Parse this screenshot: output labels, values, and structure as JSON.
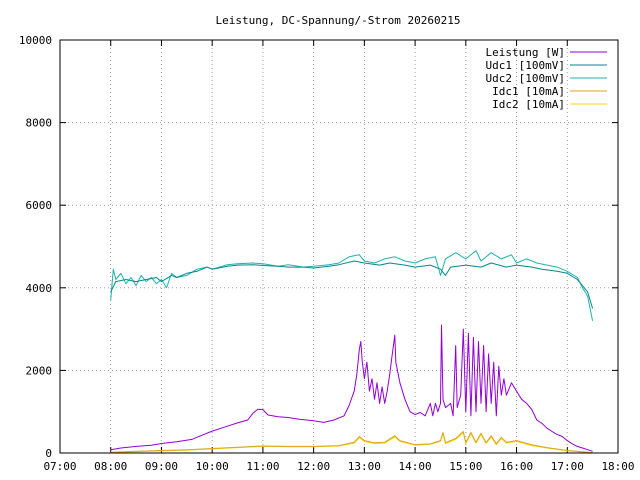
{
  "chart_data": {
    "type": "line",
    "title": "Leistung, DC-Spannung/-Strom 20260215",
    "xlabel": "",
    "ylabel": "",
    "grid": true,
    "legend_position": "top-right",
    "xlim": [
      7.0,
      18.0
    ],
    "ylim": [
      0,
      10000
    ],
    "x_ticks": [
      {
        "value": 7,
        "label": "07:00"
      },
      {
        "value": 8,
        "label": "08:00"
      },
      {
        "value": 9,
        "label": "09:00"
      },
      {
        "value": 10,
        "label": "10:00"
      },
      {
        "value": 11,
        "label": "11:00"
      },
      {
        "value": 12,
        "label": "12:00"
      },
      {
        "value": 13,
        "label": "13:00"
      },
      {
        "value": 14,
        "label": "14:00"
      },
      {
        "value": 15,
        "label": "15:00"
      },
      {
        "value": 16,
        "label": "16:00"
      },
      {
        "value": 17,
        "label": "17:00"
      },
      {
        "value": 18,
        "label": "18:00"
      }
    ],
    "y_ticks": [
      {
        "value": 0,
        "label": "0"
      },
      {
        "value": 2000,
        "label": "2000"
      },
      {
        "value": 4000,
        "label": "4000"
      },
      {
        "value": 6000,
        "label": "6000"
      },
      {
        "value": 8000,
        "label": "8000"
      },
      {
        "value": 10000,
        "label": "10000"
      }
    ],
    "series": [
      {
        "name": "Leistung [W]",
        "color": "#9400d3",
        "points": [
          [
            8.0,
            80
          ],
          [
            8.2,
            120
          ],
          [
            8.5,
            160
          ],
          [
            8.8,
            190
          ],
          [
            9.0,
            230
          ],
          [
            9.3,
            270
          ],
          [
            9.6,
            330
          ],
          [
            9.8,
            430
          ],
          [
            10.0,
            530
          ],
          [
            10.3,
            650
          ],
          [
            10.5,
            730
          ],
          [
            10.7,
            800
          ],
          [
            10.8,
            960
          ],
          [
            10.9,
            1060
          ],
          [
            11.0,
            1050
          ],
          [
            11.1,
            920
          ],
          [
            11.3,
            880
          ],
          [
            11.5,
            860
          ],
          [
            11.7,
            820
          ],
          [
            12.0,
            780
          ],
          [
            12.2,
            740
          ],
          [
            12.4,
            800
          ],
          [
            12.6,
            900
          ],
          [
            12.7,
            1150
          ],
          [
            12.8,
            1500
          ],
          [
            12.85,
            1900
          ],
          [
            12.9,
            2500
          ],
          [
            12.93,
            2700
          ],
          [
            12.96,
            2200
          ],
          [
            13.0,
            1800
          ],
          [
            13.05,
            2200
          ],
          [
            13.1,
            1500
          ],
          [
            13.15,
            1800
          ],
          [
            13.2,
            1300
          ],
          [
            13.25,
            1700
          ],
          [
            13.3,
            1200
          ],
          [
            13.35,
            1600
          ],
          [
            13.4,
            1200
          ],
          [
            13.45,
            1500
          ],
          [
            13.5,
            1900
          ],
          [
            13.55,
            2400
          ],
          [
            13.6,
            2850
          ],
          [
            13.62,
            2200
          ],
          [
            13.7,
            1700
          ],
          [
            13.8,
            1300
          ],
          [
            13.9,
            1000
          ],
          [
            14.0,
            930
          ],
          [
            14.1,
            980
          ],
          [
            14.2,
            900
          ],
          [
            14.3,
            1200
          ],
          [
            14.35,
            900
          ],
          [
            14.4,
            1200
          ],
          [
            14.45,
            1000
          ],
          [
            14.5,
            1200
          ],
          [
            14.52,
            3100
          ],
          [
            14.55,
            1300
          ],
          [
            14.6,
            1100
          ],
          [
            14.7,
            1200
          ],
          [
            14.75,
            900
          ],
          [
            14.8,
            2600
          ],
          [
            14.83,
            1100
          ],
          [
            14.9,
            1400
          ],
          [
            14.95,
            3000
          ],
          [
            15.0,
            1000
          ],
          [
            15.05,
            2900
          ],
          [
            15.1,
            900
          ],
          [
            15.15,
            2800
          ],
          [
            15.2,
            1000
          ],
          [
            15.25,
            2700
          ],
          [
            15.3,
            1200
          ],
          [
            15.35,
            2600
          ],
          [
            15.4,
            1000
          ],
          [
            15.45,
            2400
          ],
          [
            15.5,
            1200
          ],
          [
            15.55,
            2200
          ],
          [
            15.6,
            900
          ],
          [
            15.65,
            2100
          ],
          [
            15.7,
            1400
          ],
          [
            15.75,
            1800
          ],
          [
            15.8,
            1400
          ],
          [
            15.9,
            1700
          ],
          [
            16.0,
            1500
          ],
          [
            16.1,
            1300
          ],
          [
            16.2,
            1200
          ],
          [
            16.3,
            1050
          ],
          [
            16.4,
            800
          ],
          [
            16.5,
            720
          ],
          [
            16.6,
            600
          ],
          [
            16.7,
            520
          ],
          [
            16.8,
            450
          ],
          [
            16.9,
            400
          ],
          [
            17.0,
            300
          ],
          [
            17.1,
            220
          ],
          [
            17.2,
            160
          ],
          [
            17.3,
            120
          ],
          [
            17.4,
            80
          ],
          [
            17.5,
            40
          ]
        ]
      },
      {
        "name": "Udc1 [100mV]",
        "color": "#008b8b",
        "points": [
          [
            8.0,
            3900
          ],
          [
            8.1,
            4150
          ],
          [
            8.3,
            4200
          ],
          [
            8.5,
            4150
          ],
          [
            8.7,
            4200
          ],
          [
            8.9,
            4250
          ],
          [
            9.0,
            4150
          ],
          [
            9.2,
            4300
          ],
          [
            9.3,
            4250
          ],
          [
            9.5,
            4350
          ],
          [
            9.7,
            4400
          ],
          [
            9.9,
            4500
          ],
          [
            10.0,
            4450
          ],
          [
            10.3,
            4520
          ],
          [
            10.5,
            4550
          ],
          [
            10.8,
            4560
          ],
          [
            11.0,
            4540
          ],
          [
            11.3,
            4520
          ],
          [
            11.5,
            4500
          ],
          [
            11.8,
            4500
          ],
          [
            12.0,
            4480
          ],
          [
            12.3,
            4520
          ],
          [
            12.5,
            4560
          ],
          [
            12.8,
            4650
          ],
          [
            13.0,
            4600
          ],
          [
            13.3,
            4550
          ],
          [
            13.5,
            4600
          ],
          [
            13.8,
            4550
          ],
          [
            14.0,
            4500
          ],
          [
            14.3,
            4550
          ],
          [
            14.5,
            4450
          ],
          [
            14.6,
            4300
          ],
          [
            14.7,
            4500
          ],
          [
            15.0,
            4550
          ],
          [
            15.3,
            4500
          ],
          [
            15.5,
            4600
          ],
          [
            15.8,
            4500
          ],
          [
            16.0,
            4550
          ],
          [
            16.3,
            4500
          ],
          [
            16.5,
            4450
          ],
          [
            16.8,
            4400
          ],
          [
            17.0,
            4350
          ],
          [
            17.2,
            4200
          ],
          [
            17.3,
            4050
          ],
          [
            17.4,
            3900
          ],
          [
            17.5,
            3500
          ]
        ]
      },
      {
        "name": "Udc2 [100mV]",
        "color": "#20b2aa",
        "points": [
          [
            8.0,
            3700
          ],
          [
            8.05,
            4450
          ],
          [
            8.1,
            4200
          ],
          [
            8.2,
            4350
          ],
          [
            8.3,
            4100
          ],
          [
            8.4,
            4250
          ],
          [
            8.5,
            4050
          ],
          [
            8.6,
            4300
          ],
          [
            8.7,
            4150
          ],
          [
            8.8,
            4250
          ],
          [
            8.9,
            4100
          ],
          [
            9.0,
            4200
          ],
          [
            9.1,
            4000
          ],
          [
            9.2,
            4350
          ],
          [
            9.3,
            4250
          ],
          [
            9.5,
            4300
          ],
          [
            9.7,
            4450
          ],
          [
            9.9,
            4500
          ],
          [
            10.0,
            4450
          ],
          [
            10.3,
            4560
          ],
          [
            10.5,
            4580
          ],
          [
            10.8,
            4600
          ],
          [
            11.0,
            4580
          ],
          [
            11.3,
            4520
          ],
          [
            11.5,
            4560
          ],
          [
            11.8,
            4500
          ],
          [
            12.0,
            4520
          ],
          [
            12.3,
            4560
          ],
          [
            12.5,
            4600
          ],
          [
            12.7,
            4750
          ],
          [
            12.9,
            4800
          ],
          [
            13.0,
            4650
          ],
          [
            13.2,
            4600
          ],
          [
            13.4,
            4700
          ],
          [
            13.6,
            4750
          ],
          [
            13.8,
            4650
          ],
          [
            14.0,
            4600
          ],
          [
            14.2,
            4700
          ],
          [
            14.4,
            4750
          ],
          [
            14.5,
            4300
          ],
          [
            14.6,
            4700
          ],
          [
            14.8,
            4850
          ],
          [
            15.0,
            4700
          ],
          [
            15.2,
            4900
          ],
          [
            15.3,
            4650
          ],
          [
            15.5,
            4850
          ],
          [
            15.7,
            4700
          ],
          [
            15.9,
            4800
          ],
          [
            16.0,
            4600
          ],
          [
            16.2,
            4700
          ],
          [
            16.4,
            4600
          ],
          [
            16.6,
            4550
          ],
          [
            16.8,
            4500
          ],
          [
            17.0,
            4400
          ],
          [
            17.2,
            4250
          ],
          [
            17.3,
            4000
          ],
          [
            17.4,
            3800
          ],
          [
            17.5,
            3200
          ]
        ]
      },
      {
        "name": "Idc1 [10mA]",
        "color": "#daa520",
        "points": [
          [
            8.0,
            20
          ],
          [
            8.5,
            40
          ],
          [
            9.0,
            60
          ],
          [
            9.5,
            80
          ],
          [
            10.0,
            110
          ],
          [
            10.5,
            140
          ],
          [
            11.0,
            170
          ],
          [
            11.5,
            160
          ],
          [
            12.0,
            160
          ],
          [
            12.5,
            180
          ],
          [
            12.8,
            260
          ],
          [
            12.9,
            400
          ],
          [
            13.0,
            300
          ],
          [
            13.2,
            250
          ],
          [
            13.4,
            260
          ],
          [
            13.6,
            420
          ],
          [
            13.7,
            300
          ],
          [
            14.0,
            200
          ],
          [
            14.3,
            220
          ],
          [
            14.5,
            300
          ],
          [
            14.55,
            500
          ],
          [
            14.6,
            250
          ],
          [
            14.8,
            350
          ],
          [
            14.95,
            520
          ],
          [
            15.0,
            250
          ],
          [
            15.1,
            500
          ],
          [
            15.2,
            260
          ],
          [
            15.3,
            480
          ],
          [
            15.4,
            250
          ],
          [
            15.5,
            420
          ],
          [
            15.6,
            220
          ],
          [
            15.7,
            380
          ],
          [
            15.8,
            260
          ],
          [
            16.0,
            300
          ],
          [
            16.3,
            200
          ],
          [
            16.6,
            130
          ],
          [
            17.0,
            60
          ],
          [
            17.5,
            10
          ]
        ]
      },
      {
        "name": "Idc2 [10mA]",
        "color": "#ffd700",
        "points": [
          [
            8.0,
            15
          ],
          [
            8.5,
            30
          ],
          [
            9.0,
            50
          ],
          [
            9.5,
            70
          ],
          [
            10.0,
            100
          ],
          [
            10.5,
            130
          ],
          [
            11.0,
            160
          ],
          [
            11.5,
            150
          ],
          [
            12.0,
            150
          ],
          [
            12.5,
            170
          ],
          [
            12.8,
            240
          ],
          [
            12.9,
            370
          ],
          [
            13.0,
            280
          ],
          [
            13.2,
            230
          ],
          [
            13.4,
            240
          ],
          [
            13.6,
            390
          ],
          [
            13.7,
            280
          ],
          [
            14.0,
            190
          ],
          [
            14.3,
            210
          ],
          [
            14.5,
            280
          ],
          [
            14.55,
            470
          ],
          [
            14.6,
            230
          ],
          [
            14.8,
            330
          ],
          [
            14.95,
            490
          ],
          [
            15.0,
            230
          ],
          [
            15.1,
            470
          ],
          [
            15.2,
            240
          ],
          [
            15.3,
            450
          ],
          [
            15.4,
            230
          ],
          [
            15.5,
            390
          ],
          [
            15.6,
            200
          ],
          [
            15.7,
            350
          ],
          [
            15.8,
            240
          ],
          [
            16.0,
            280
          ],
          [
            16.3,
            180
          ],
          [
            16.6,
            120
          ],
          [
            17.0,
            50
          ],
          [
            17.5,
            10
          ]
        ]
      }
    ]
  }
}
